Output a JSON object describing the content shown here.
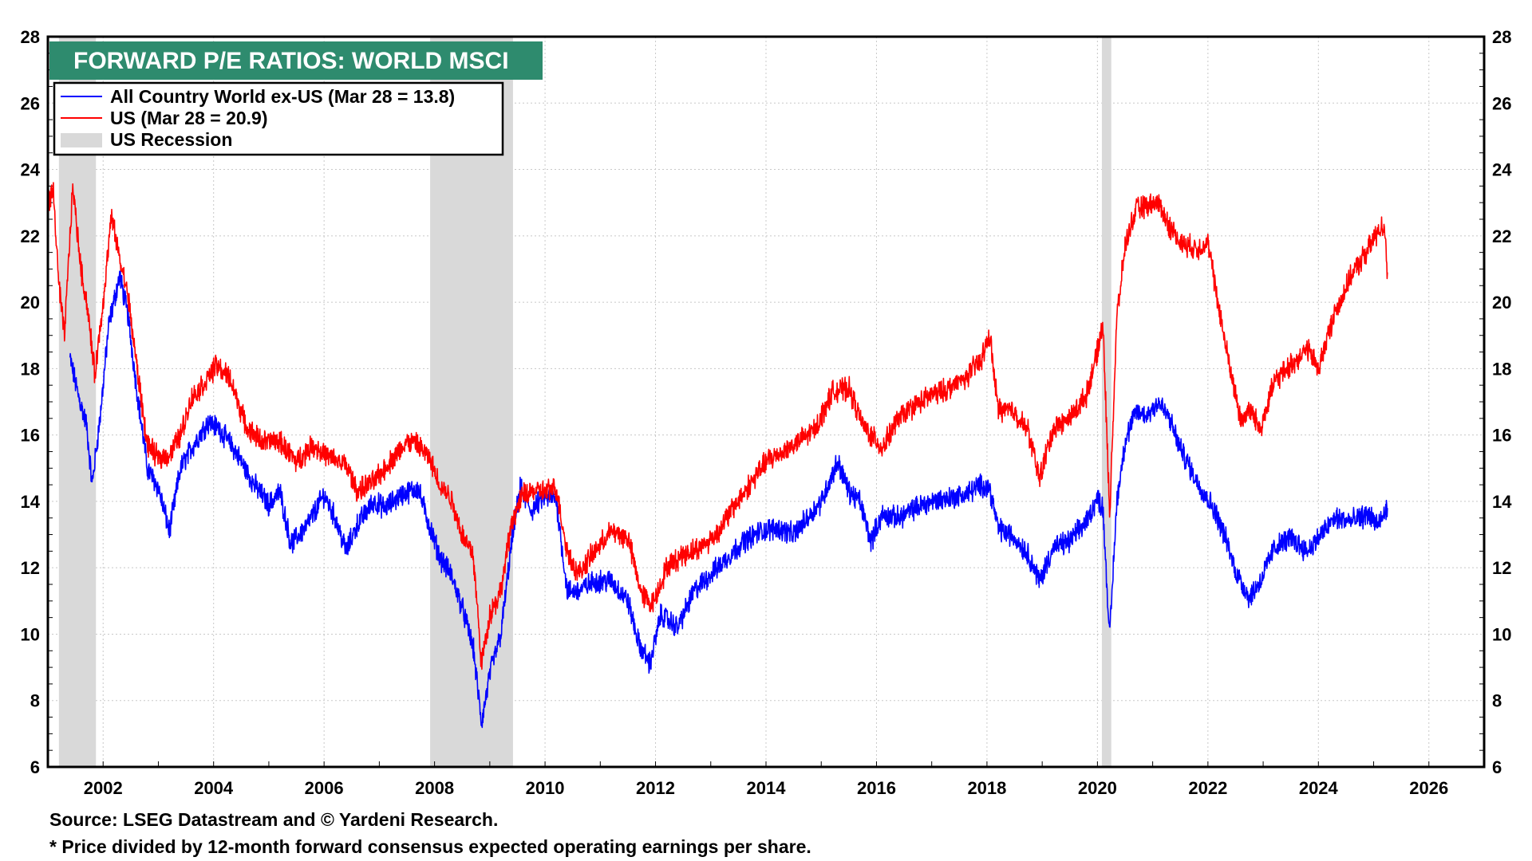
{
  "chart_data": {
    "type": "line",
    "title": "FORWARD P/E RATIOS: WORLD MSCI",
    "xlabel": "",
    "ylabel": "",
    "xlim": [
      2001.0,
      2027.0
    ],
    "ylim": [
      6,
      28
    ],
    "y_ticks": [
      "6",
      "8",
      "10",
      "12",
      "14",
      "16",
      "18",
      "20",
      "22",
      "24",
      "26",
      "28"
    ],
    "x_ticks": [
      "2002",
      "2004",
      "2006",
      "2008",
      "2010",
      "2012",
      "2014",
      "2016",
      "2018",
      "2020",
      "2022",
      "2024",
      "2026"
    ],
    "grid": true,
    "legend_position": "top-left",
    "recessions": [
      {
        "start": 2001.2,
        "end": 2001.87
      },
      {
        "start": 2007.92,
        "end": 2009.42
      },
      {
        "start": 2020.08,
        "end": 2020.25
      }
    ],
    "recession_label": "US Recession",
    "recession_color": "#d9d9d9",
    "series": [
      {
        "name": "All Country World ex-US (Mar 28 = 13.8)",
        "color": "#0000ff",
        "x": [
          2001.4,
          2001.55,
          2001.7,
          2001.8,
          2001.95,
          2002.1,
          2002.3,
          2002.45,
          2002.6,
          2002.8,
          2003.0,
          2003.2,
          2003.4,
          2003.6,
          2003.9,
          2004.1,
          2004.4,
          2004.7,
          2005.0,
          2005.2,
          2005.4,
          2005.7,
          2006.0,
          2006.2,
          2006.4,
          2006.6,
          2006.9,
          2007.1,
          2007.4,
          2007.7,
          2007.9,
          2008.1,
          2008.3,
          2008.5,
          2008.7,
          2008.85,
          2009.0,
          2009.2,
          2009.4,
          2009.55,
          2009.75,
          2009.95,
          2010.2,
          2010.4,
          2010.6,
          2010.9,
          2011.2,
          2011.5,
          2011.7,
          2011.9,
          2012.1,
          2012.4,
          2012.7,
          2013.0,
          2013.3,
          2013.6,
          2013.9,
          2014.2,
          2014.5,
          2014.8,
          2015.0,
          2015.3,
          2015.5,
          2015.7,
          2015.9,
          2016.1,
          2016.4,
          2016.7,
          2017.0,
          2017.3,
          2017.6,
          2017.9,
          2018.05,
          2018.2,
          2018.5,
          2018.75,
          2018.95,
          2019.2,
          2019.5,
          2019.8,
          2020.0,
          2020.1,
          2020.22,
          2020.35,
          2020.5,
          2020.7,
          2020.9,
          2021.1,
          2021.3,
          2021.5,
          2021.8,
          2022.1,
          2022.3,
          2022.5,
          2022.75,
          2022.95,
          2023.2,
          2023.5,
          2023.8,
          2024.0,
          2024.3,
          2024.6,
          2024.9,
          2025.1,
          2025.25
        ],
        "values": [
          18.3,
          17.2,
          16.3,
          14.5,
          16.6,
          19.3,
          20.8,
          19.6,
          17.5,
          15.0,
          14.4,
          13.1,
          15.0,
          15.6,
          16.4,
          16.2,
          15.5,
          14.6,
          13.9,
          14.3,
          12.7,
          13.3,
          14.2,
          13.5,
          12.5,
          13.3,
          14.0,
          13.8,
          14.2,
          14.4,
          13.3,
          12.3,
          11.8,
          10.8,
          9.6,
          7.3,
          8.8,
          10.0,
          12.8,
          14.4,
          13.7,
          14.1,
          14.1,
          11.3,
          11.3,
          11.6,
          11.6,
          11.0,
          9.7,
          9.1,
          10.6,
          10.2,
          11.3,
          11.8,
          12.3,
          12.8,
          13.1,
          13.2,
          13.0,
          13.6,
          14.0,
          15.2,
          14.3,
          14.0,
          12.8,
          13.6,
          13.5,
          13.8,
          14.0,
          14.1,
          14.2,
          14.5,
          14.4,
          13.2,
          12.9,
          12.4,
          11.6,
          12.6,
          12.8,
          13.4,
          14.1,
          13.8,
          9.9,
          14.0,
          15.8,
          16.7,
          16.6,
          17.0,
          16.5,
          15.6,
          14.6,
          13.8,
          13.0,
          11.9,
          11.1,
          11.6,
          12.6,
          12.9,
          12.5,
          12.9,
          13.5,
          13.4,
          13.6,
          13.3,
          13.8
        ]
      },
      {
        "name": "US (Mar 28 = 20.9)",
        "color": "#ff0000",
        "x": [
          2001.0,
          2001.1,
          2001.2,
          2001.3,
          2001.45,
          2001.6,
          2001.72,
          2001.85,
          2002.0,
          2002.15,
          2002.3,
          2002.45,
          2002.6,
          2002.8,
          2003.0,
          2003.2,
          2003.4,
          2003.6,
          2003.85,
          2004.05,
          2004.3,
          2004.6,
          2004.9,
          2005.2,
          2005.5,
          2005.8,
          2006.1,
          2006.4,
          2006.6,
          2006.9,
          2007.2,
          2007.5,
          2007.7,
          2007.9,
          2008.1,
          2008.3,
          2008.5,
          2008.7,
          2008.85,
          2009.0,
          2009.2,
          2009.4,
          2009.6,
          2009.8,
          2010.0,
          2010.2,
          2010.4,
          2010.6,
          2010.9,
          2011.2,
          2011.5,
          2011.75,
          2011.95,
          2012.2,
          2012.5,
          2012.8,
          2013.1,
          2013.4,
          2013.7,
          2014.0,
          2014.3,
          2014.6,
          2014.9,
          2015.2,
          2015.5,
          2015.75,
          2015.95,
          2016.1,
          2016.4,
          2016.7,
          2017.0,
          2017.3,
          2017.6,
          2017.9,
          2018.05,
          2018.2,
          2018.5,
          2018.75,
          2018.95,
          2019.2,
          2019.5,
          2019.8,
          2020.0,
          2020.1,
          2020.22,
          2020.35,
          2020.5,
          2020.7,
          2020.9,
          2021.1,
          2021.3,
          2021.5,
          2021.8,
          2022.0,
          2022.2,
          2022.4,
          2022.6,
          2022.75,
          2022.95,
          2023.2,
          2023.5,
          2023.8,
          2024.0,
          2024.3,
          2024.6,
          2024.9,
          2025.1,
          2025.2,
          2025.25
        ],
        "values": [
          23.0,
          23.3,
          20.5,
          19.0,
          23.5,
          21.0,
          19.8,
          17.8,
          20.0,
          22.6,
          21.3,
          20.2,
          18.2,
          15.7,
          15.3,
          15.4,
          16.0,
          17.1,
          17.6,
          18.1,
          17.7,
          16.2,
          15.8,
          15.8,
          15.2,
          15.7,
          15.3,
          15.1,
          14.3,
          14.6,
          15.2,
          15.8,
          15.7,
          15.3,
          14.5,
          14.1,
          13.0,
          12.4,
          9.1,
          10.6,
          11.3,
          13.4,
          14.2,
          14.3,
          14.3,
          14.4,
          12.5,
          11.8,
          12.5,
          13.1,
          12.9,
          11.2,
          10.9,
          12.0,
          12.4,
          12.6,
          13.0,
          13.8,
          14.5,
          15.2,
          15.5,
          15.8,
          16.2,
          17.3,
          17.4,
          16.3,
          15.9,
          15.6,
          16.5,
          16.9,
          17.2,
          17.4,
          17.7,
          18.3,
          19.0,
          16.8,
          16.7,
          16.1,
          14.7,
          16.2,
          16.5,
          17.2,
          18.5,
          19.4,
          13.6,
          19.5,
          21.7,
          22.8,
          22.9,
          23.0,
          22.3,
          21.8,
          21.6,
          21.8,
          19.8,
          18.0,
          16.4,
          16.8,
          16.2,
          17.6,
          18.1,
          18.6,
          18.0,
          19.7,
          20.8,
          21.6,
          22.2,
          22.3,
          20.9
        ]
      }
    ]
  },
  "footnotes": {
    "source": "Source: LSEG Datastream and © Yardeni Research.",
    "note": "* Price divided by 12-month forward consensus expected operating earnings per share."
  }
}
